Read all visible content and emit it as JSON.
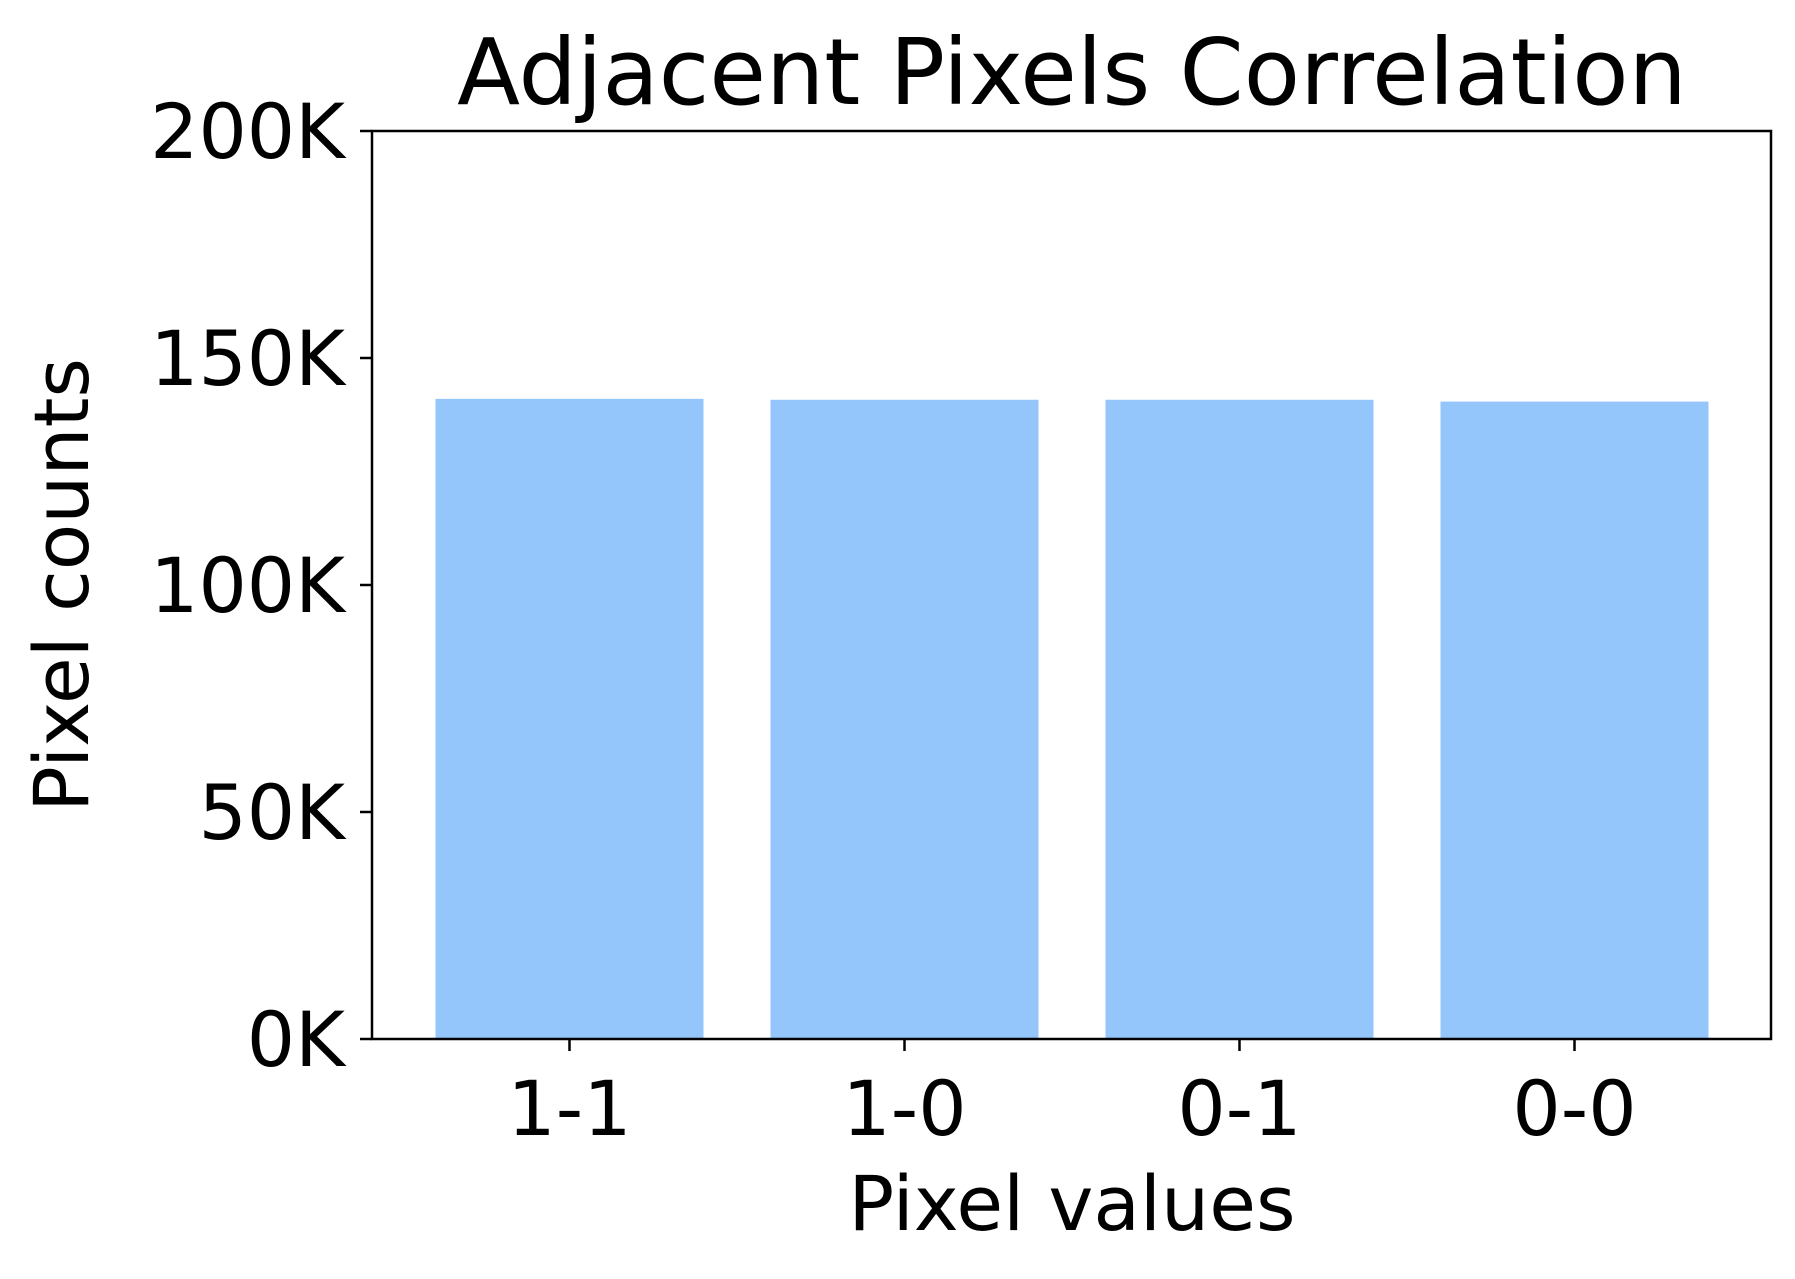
{
  "chart_data": {
    "type": "bar",
    "title": "Adjacent Pixels Correlation",
    "xlabel": "Pixel values",
    "ylabel": "Pixel counts",
    "categories": [
      "1-1",
      "1-0",
      "0-1",
      "0-0"
    ],
    "values": [
      141000,
      140800,
      140800,
      140400
    ],
    "ylim": [
      0,
      200000
    ],
    "yticks": [
      0,
      50000,
      100000,
      150000,
      200000
    ],
    "ytick_labels": [
      "0K",
      "50K",
      "100K",
      "150K",
      "200K"
    ],
    "bar_color": "#94c5fb",
    "grid": false,
    "legend": "none"
  }
}
